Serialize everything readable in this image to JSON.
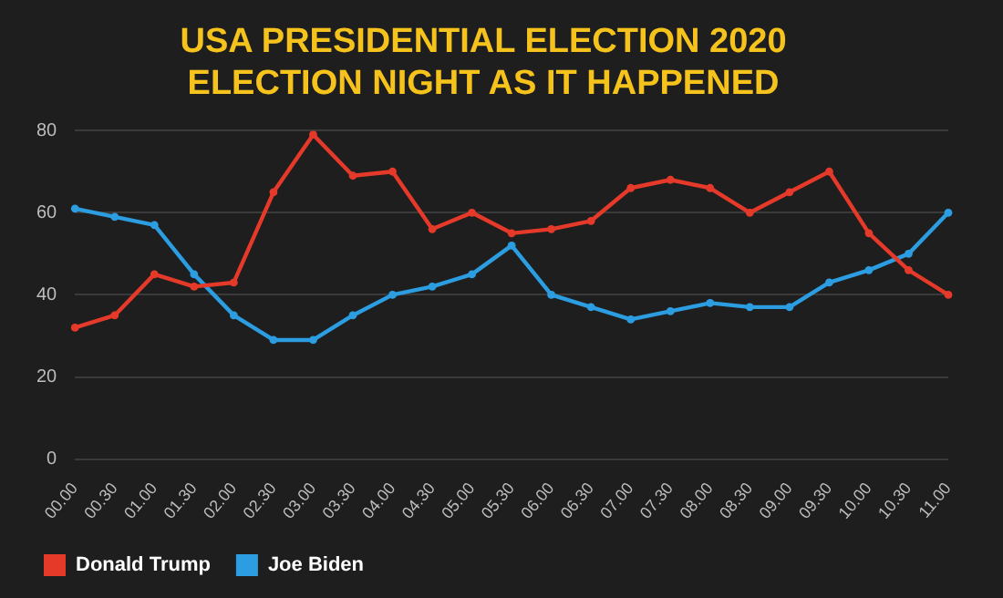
{
  "chart_data": {
    "type": "line",
    "title": "USA PRESIDENTIAL ELECTION 2020",
    "subtitle": "ELECTION NIGHT AS IT HAPPENED",
    "categories": [
      "00.00",
      "00.30",
      "01.00",
      "01.30",
      "02.00",
      "02.30",
      "03.00",
      "03.30",
      "04.00",
      "04.30",
      "05.00",
      "05.30",
      "06.00",
      "06.30",
      "07.00",
      "07.30",
      "08.00",
      "08.30",
      "09.00",
      "09.30",
      "10.00",
      "10.30",
      "11.00"
    ],
    "series": [
      {
        "name": "Donald Trump",
        "color": "#e5392a",
        "values": [
          32,
          35,
          45,
          42,
          43,
          65,
          79,
          69,
          70,
          56,
          60,
          55,
          56,
          58,
          66,
          68,
          66,
          60,
          65,
          70,
          55,
          46,
          40
        ]
      },
      {
        "name": "Joe Biden",
        "color": "#2b9de0",
        "values": [
          61,
          59,
          57,
          45,
          35,
          29,
          29,
          35,
          40,
          42,
          45,
          52,
          40,
          37,
          34,
          36,
          38,
          37,
          37,
          43,
          46,
          50,
          60
        ]
      }
    ],
    "ylim": [
      0,
      80
    ],
    "yticks": [
      0,
      20,
      40,
      60,
      80
    ],
    "grid": "y",
    "legend": "bottom left",
    "marker": "circle",
    "line_style": "solid"
  }
}
